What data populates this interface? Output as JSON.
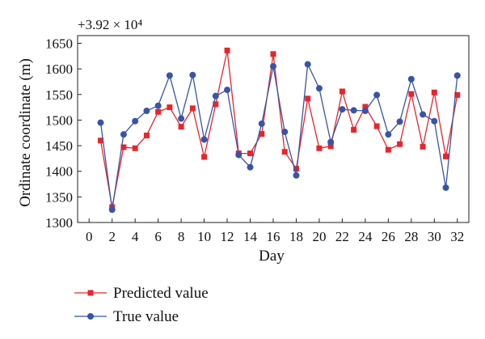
{
  "chart_data": {
    "type": "line",
    "offset_label": "+3.92 × 10⁴",
    "xlabel": "Day",
    "ylabel": "Ordinate coordinate (m)",
    "xlim": [
      -1,
      33
    ],
    "ylim": [
      1300,
      1665
    ],
    "x_ticks": [
      0,
      2,
      4,
      6,
      8,
      10,
      12,
      14,
      16,
      18,
      20,
      22,
      24,
      26,
      28,
      30,
      32
    ],
    "y_ticks": [
      1300,
      1350,
      1400,
      1450,
      1500,
      1550,
      1600,
      1650
    ],
    "grid": false,
    "legend_position": "bottom-left",
    "x": [
      1,
      2,
      3,
      4,
      5,
      6,
      7,
      8,
      9,
      10,
      11,
      12,
      13,
      14,
      15,
      16,
      17,
      18,
      19,
      20,
      21,
      22,
      23,
      24,
      25,
      26,
      27,
      28,
      29,
      30,
      31,
      32
    ],
    "series": [
      {
        "name": "Predicted value",
        "color": "#e8252a",
        "marker": "square",
        "values": [
          1460,
          1330,
          1447,
          1445,
          1470,
          1516,
          1525,
          1487,
          1523,
          1428,
          1531,
          1636,
          1435,
          1435,
          1473,
          1629,
          1438,
          1405,
          1542,
          1445,
          1449,
          1556,
          1481,
          1526,
          1488,
          1442,
          1453,
          1551,
          1448,
          1554,
          1429,
          1549
        ]
      },
      {
        "name": "True value",
        "color": "#3754a6",
        "marker": "circle",
        "values": [
          1495,
          1325,
          1472,
          1498,
          1518,
          1528,
          1587,
          1503,
          1588,
          1462,
          1547,
          1559,
          1432,
          1408,
          1493,
          1605,
          1477,
          1392,
          1609,
          1562,
          1457,
          1521,
          1519,
          1518,
          1549,
          1472,
          1497,
          1580,
          1511,
          1498,
          1368,
          1587
        ]
      }
    ]
  }
}
